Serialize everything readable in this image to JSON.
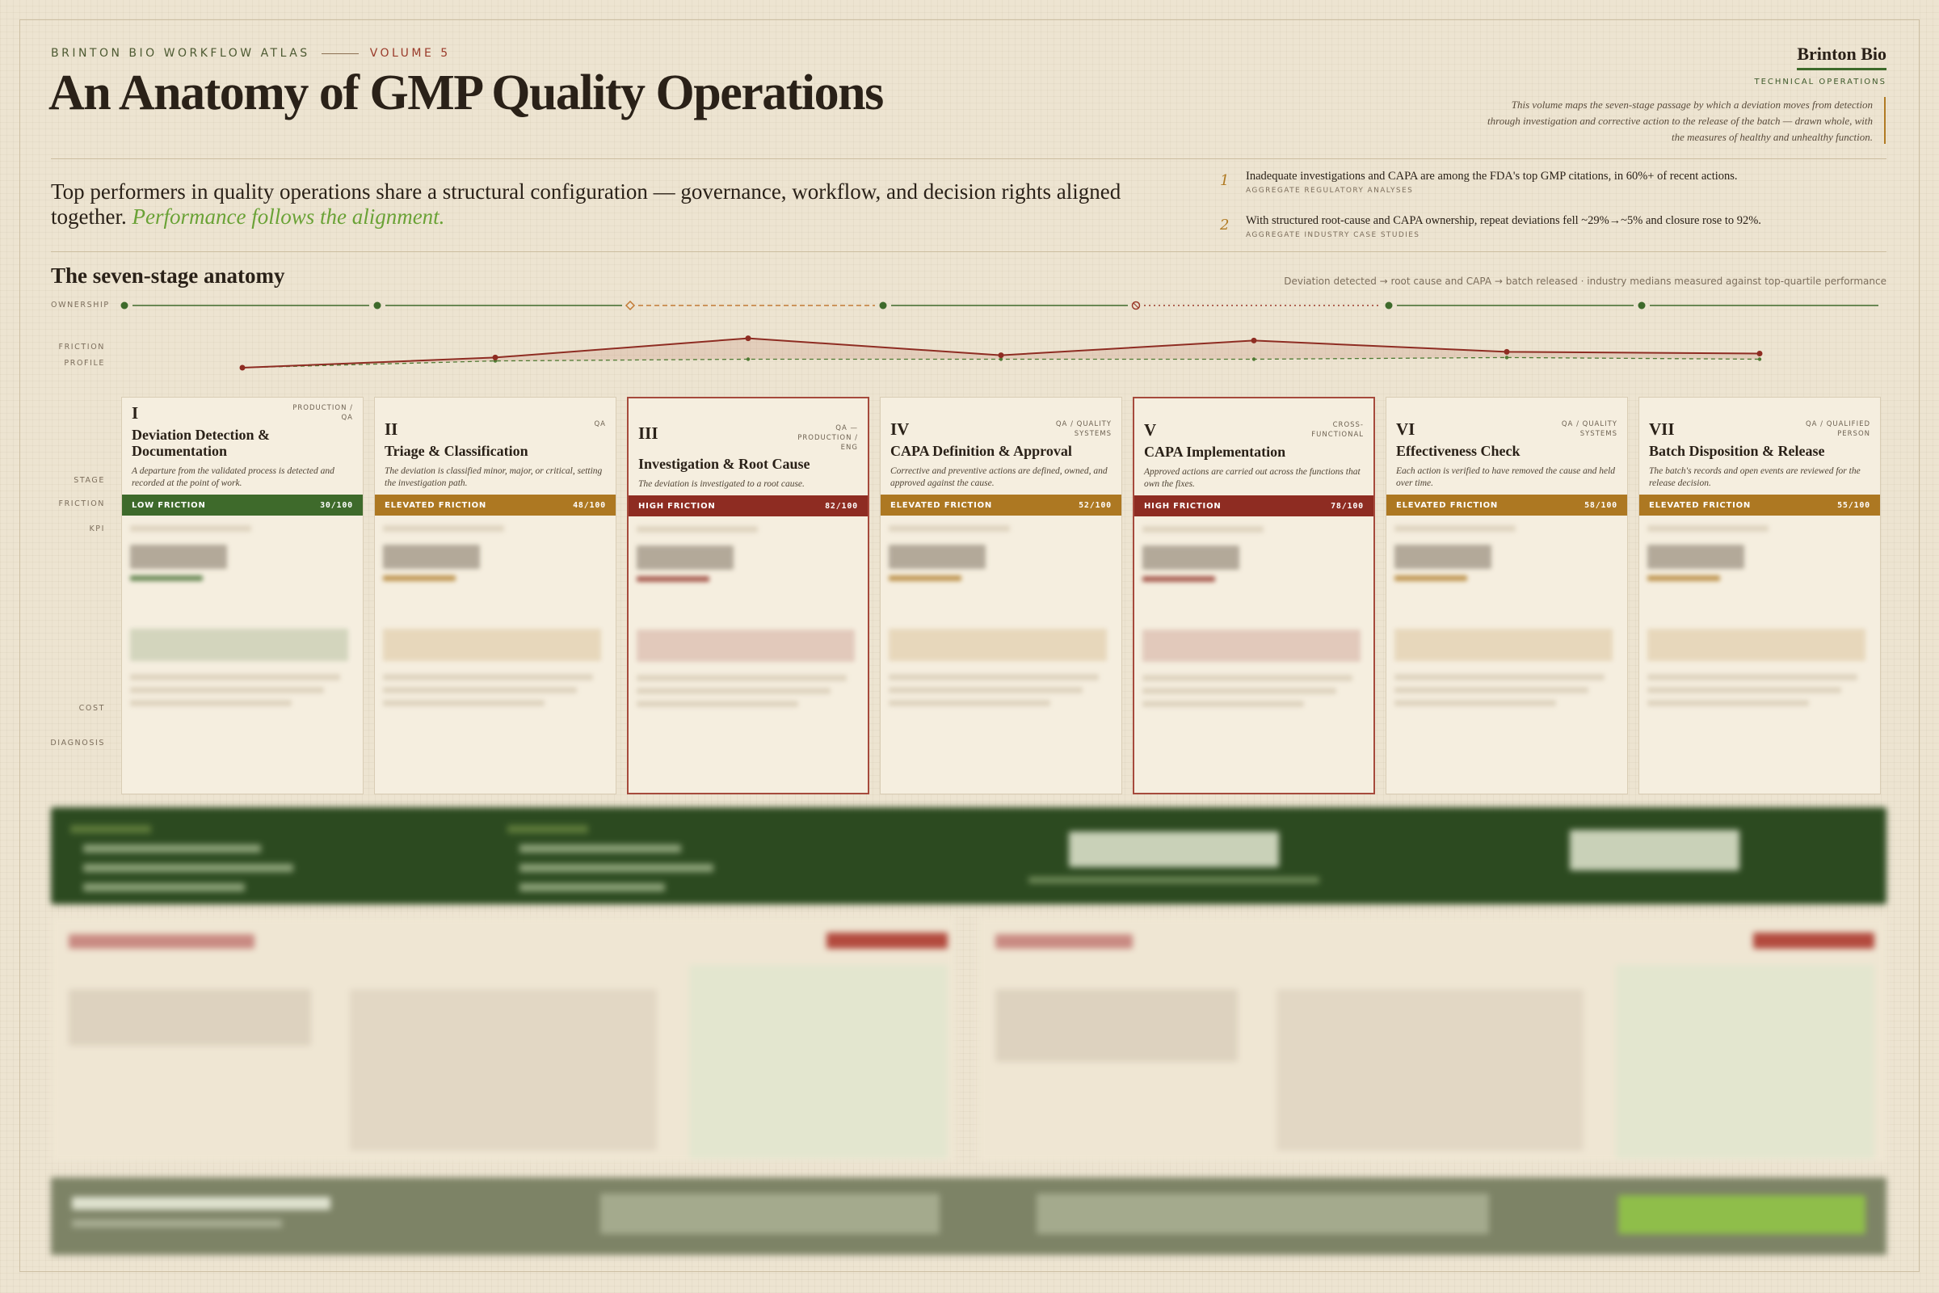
{
  "header": {
    "kicker": "BRINTON BIO WORKFLOW ATLAS",
    "volume": "VOLUME 5",
    "title": "An Anatomy of GMP Quality Operations",
    "brand": "Brinton Bio",
    "brand_sub": "TECHNICAL OPERATIONS",
    "intro": "This volume maps the seven-stage passage by which a deviation moves from detection through investigation and corrective action to the release of the batch — drawn whole, with the measures of healthy and unhealthy function."
  },
  "lede": {
    "text": "Top performers in quality operations share a structural configuration — governance, workflow, and decision rights aligned together.",
    "emphasis": "Performance follows the alignment."
  },
  "findings": [
    {
      "num": "1",
      "text": "Inadequate investigations and CAPA are among the FDA's top GMP citations, in 60%+ of recent actions.",
      "source": "AGGREGATE REGULATORY ANALYSES"
    },
    {
      "num": "2",
      "text": "With structured root-cause and CAPA ownership, repeat deviations fell ~29%→~5% and closure rose to 92%.",
      "source": "AGGREGATE INDUSTRY CASE STUDIES"
    }
  ],
  "section": {
    "title": "The seven-stage anatomy",
    "note": "Deviation detected → root cause and CAPA → batch released · industry medians measured against top-quartile performance"
  },
  "row_labels": {
    "ownership": "OWNERSHIP",
    "profile": "FRICTION PROFILE",
    "stage": "STAGE",
    "friction": "FRICTION",
    "kpi": "KPI",
    "cost": "COST",
    "diagnosis": "DIAGNOSIS"
  },
  "stages": [
    {
      "numeral": "I",
      "owner": "PRODUCTION / QA",
      "name": "Deviation Detection & Documentation",
      "desc": "A departure from the validated process is detected and recorded at the point of work.",
      "friction_label": "LOW FRICTION",
      "score": 30,
      "score_label": "30/100",
      "benchmark": 30,
      "color": "#3e6a2b",
      "ownership": "dot",
      "highlight": false
    },
    {
      "numeral": "II",
      "owner": "QA",
      "name": "Triage & Classification",
      "desc": "The deviation is classified minor, major, or critical, setting the investigation path.",
      "friction_label": "ELEVATED FRICTION",
      "score": 48,
      "score_label": "48/100",
      "benchmark": 42,
      "color": "#ad7822",
      "ownership": "dot",
      "highlight": false
    },
    {
      "numeral": "III",
      "owner": "QA — PRODUCTION / ENG",
      "name": "Investigation & Root Cause",
      "desc": "The deviation is investigated to a root cause.",
      "friction_label": "HIGH FRICTION",
      "score": 82,
      "score_label": "82/100",
      "benchmark": 45,
      "color": "#8e2c22",
      "ownership": "diamond",
      "highlight": true
    },
    {
      "numeral": "IV",
      "owner": "QA / QUALITY SYSTEMS",
      "name": "CAPA Definition & Approval",
      "desc": "Corrective and preventive actions are defined, owned, and approved against the cause.",
      "friction_label": "ELEVATED FRICTION",
      "score": 52,
      "score_label": "52/100",
      "benchmark": 45,
      "color": "#ad7822",
      "ownership": "dot",
      "highlight": false
    },
    {
      "numeral": "V",
      "owner": "CROSS-FUNCTIONAL",
      "name": "CAPA Implementation",
      "desc": "Approved actions are carried out across the functions that own the fixes.",
      "friction_label": "HIGH FRICTION",
      "score": 78,
      "score_label": "78/100",
      "benchmark": 45,
      "color": "#8e2c22",
      "ownership": "ring",
      "highlight": true
    },
    {
      "numeral": "VI",
      "owner": "QA / QUALITY SYSTEMS",
      "name": "Effectiveness Check",
      "desc": "Each action is verified to have removed the cause and held over time.",
      "friction_label": "ELEVATED FRICTION",
      "score": 58,
      "score_label": "58/100",
      "benchmark": 48,
      "color": "#ad7822",
      "ownership": "dot",
      "highlight": false
    },
    {
      "numeral": "VII",
      "owner": "QA / QUALIFIED PERSON",
      "name": "Batch Disposition & Release",
      "desc": "The batch's records and open events are reviewed for the release decision.",
      "friction_label": "ELEVATED FRICTION",
      "score": 55,
      "score_label": "55/100",
      "benchmark": 45,
      "color": "#ad7822",
      "ownership": "dot",
      "highlight": false
    }
  ]
}
